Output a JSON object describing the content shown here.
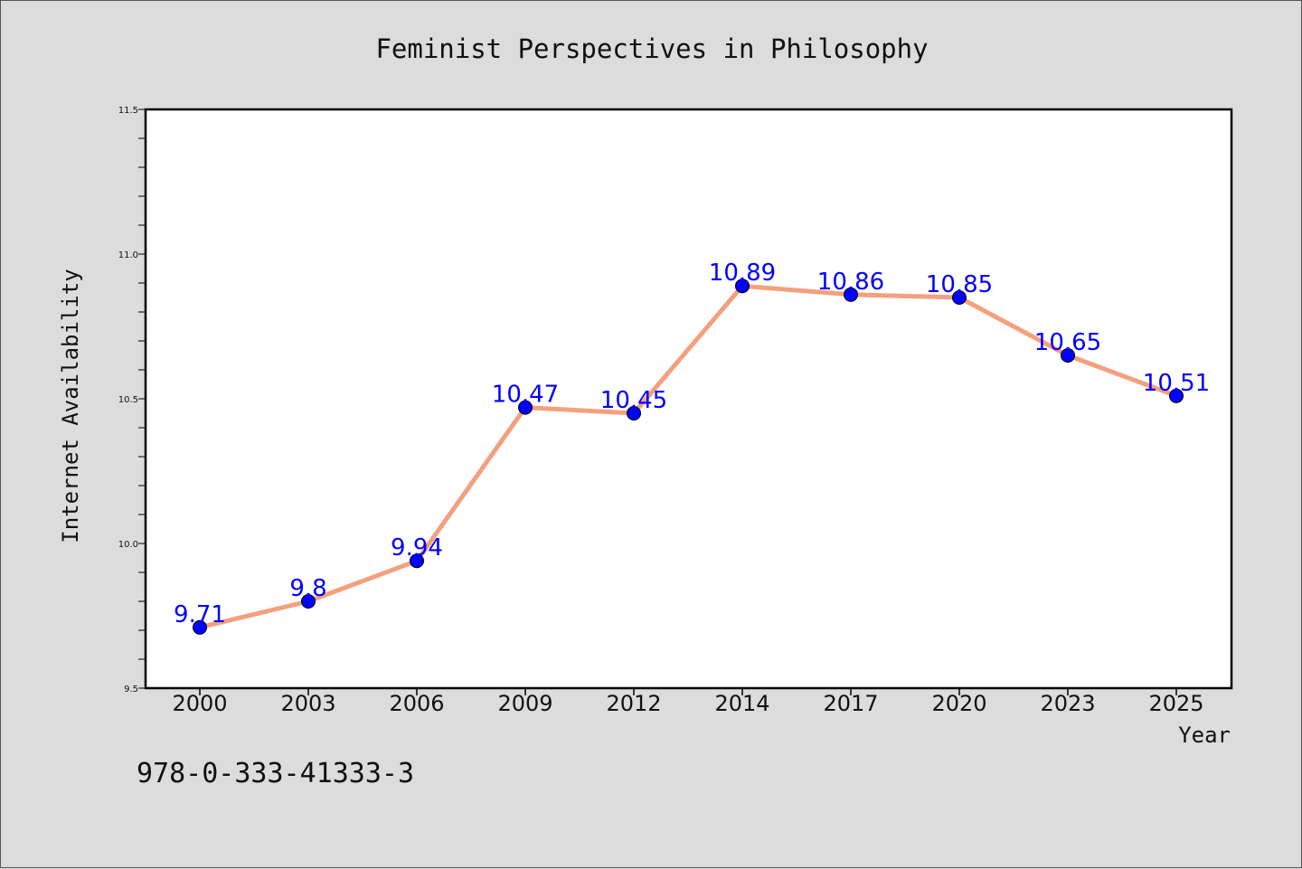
{
  "chart_data": {
    "type": "line",
    "title": "Feminist Perspectives in Philosophy",
    "xlabel": "Year",
    "ylabel": "Internet Availability",
    "categories": [
      "2000",
      "2003",
      "2006",
      "2009",
      "2012",
      "2014",
      "2017",
      "2020",
      "2023",
      "2025"
    ],
    "values": [
      9.71,
      9.8,
      9.94,
      10.47,
      10.45,
      10.89,
      10.86,
      10.85,
      10.65,
      10.51
    ],
    "value_labels": [
      "9.71",
      "9.8",
      "9.94",
      "10.47",
      "10.45",
      "10.89",
      "10.86",
      "10.85",
      "10.65",
      "10.51"
    ],
    "ylim": [
      9.5,
      11.5
    ],
    "yticks": [
      "9.5",
      "10.0",
      "10.5",
      "11.0",
      "11.5"
    ],
    "grid": false,
    "line_color": "#f4a07e",
    "marker_color": "#0000ff",
    "label_color": "#0000ff"
  },
  "footer": {
    "isbn": "978-0-333-41333-3"
  }
}
